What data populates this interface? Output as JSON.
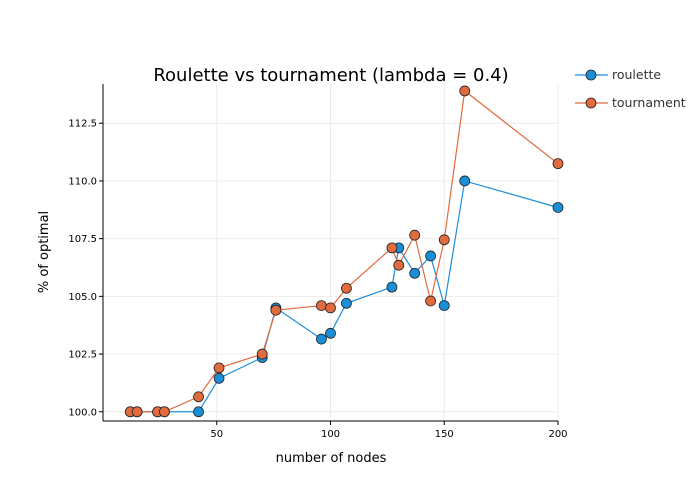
{
  "chart_data": {
    "type": "line",
    "title": "Roulette vs tournament (lambda = 0.4)",
    "xlabel": "number of nodes",
    "ylabel": "% of optimal",
    "xlim": [
      0,
      200
    ],
    "ylim": [
      99.6,
      114.2
    ],
    "x_ticks": [
      50,
      100,
      150,
      200
    ],
    "y_ticks": [
      100.0,
      102.5,
      105.0,
      107.5,
      110.0,
      112.5
    ],
    "y_tick_labels": [
      "100.0",
      "102.5",
      "105.0",
      "107.5",
      "110.0",
      "112.5"
    ],
    "grid": true,
    "legend_position": "top-right",
    "series": [
      {
        "name": "roulette",
        "color": "#1a8fd8",
        "points": [
          [
            12,
            100.0
          ],
          [
            15,
            100.0
          ],
          [
            24,
            100.0
          ],
          [
            27,
            100.0
          ],
          [
            42,
            100.0
          ],
          [
            51,
            101.45
          ],
          [
            70,
            102.35
          ],
          [
            76,
            104.5
          ],
          [
            96,
            103.15
          ],
          [
            100,
            103.4
          ],
          [
            107,
            104.7
          ],
          [
            127,
            105.4
          ],
          [
            130,
            107.1
          ],
          [
            137,
            106.0
          ],
          [
            144,
            106.75
          ],
          [
            150,
            104.6
          ],
          [
            159,
            110.0
          ],
          [
            200,
            108.85
          ]
        ]
      },
      {
        "name": "tournament",
        "color": "#e06b3f",
        "points": [
          [
            12,
            100.0
          ],
          [
            15,
            100.0
          ],
          [
            24,
            100.0
          ],
          [
            27,
            100.0
          ],
          [
            42,
            100.65
          ],
          [
            51,
            101.9
          ],
          [
            70,
            102.5
          ],
          [
            76,
            104.4
          ],
          [
            96,
            104.6
          ],
          [
            100,
            104.5
          ],
          [
            107,
            105.35
          ],
          [
            127,
            107.1
          ],
          [
            130,
            106.35
          ],
          [
            137,
            107.65
          ],
          [
            144,
            104.8
          ],
          [
            150,
            107.45
          ],
          [
            159,
            113.9
          ],
          [
            200,
            110.75
          ]
        ]
      }
    ]
  }
}
